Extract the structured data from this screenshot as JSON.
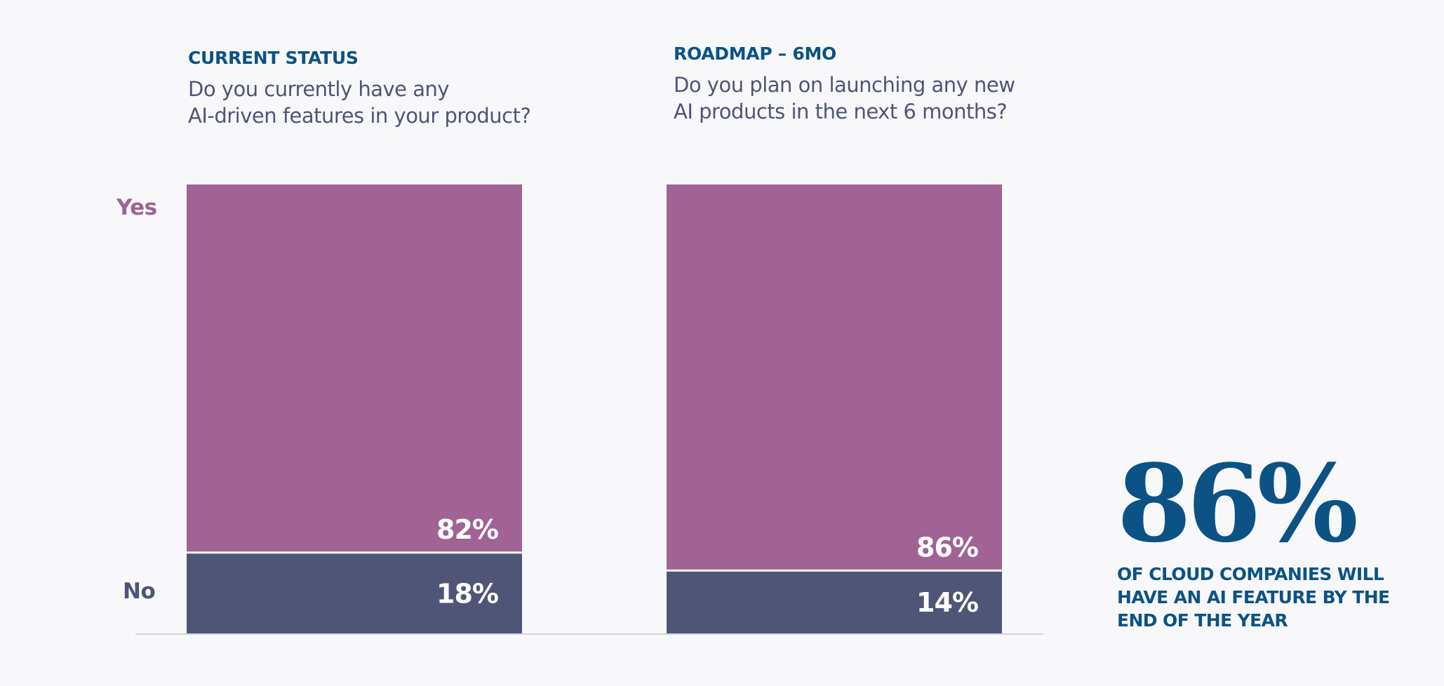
{
  "colors": {
    "background": "#f8f8fa",
    "yes": "#a06393",
    "no": "#4f5577",
    "heading": "#0c5285",
    "question": "#4e5478",
    "baseline": "#d3d3da",
    "bar_label": "#ffffff"
  },
  "panels": [
    {
      "eyebrow": "CURRENT STATUS",
      "question_line1": "Do you currently have any",
      "question_line2": "AI-driven features in your product?"
    },
    {
      "eyebrow": "ROADMAP – 6MO",
      "question_line1": "Do you plan on launching any new",
      "question_line2": "AI products in the next 6 months?"
    }
  ],
  "category_labels": {
    "yes": "Yes",
    "no": "No"
  },
  "callout": {
    "value": "86%",
    "line1": "OF CLOUD COMPANIES WILL",
    "line2": "HAVE AN AI FEATURE BY THE",
    "line3": "END OF THE YEAR"
  },
  "chart_data": {
    "type": "bar",
    "stacked": true,
    "normalized": true,
    "categories": [
      "CURRENT STATUS",
      "ROADMAP – 6MO"
    ],
    "series": [
      {
        "name": "No",
        "values": [
          18,
          14
        ],
        "labels": [
          "18%",
          "14%"
        ]
      },
      {
        "name": "Yes",
        "values": [
          82,
          86
        ],
        "labels": [
          "82%",
          "86%"
        ]
      }
    ],
    "ylim": [
      0,
      100
    ],
    "unit": "%",
    "grid": false,
    "legend": "left-side category labels (Yes top, No bottom)",
    "title": "",
    "xlabel": "",
    "ylabel": ""
  }
}
